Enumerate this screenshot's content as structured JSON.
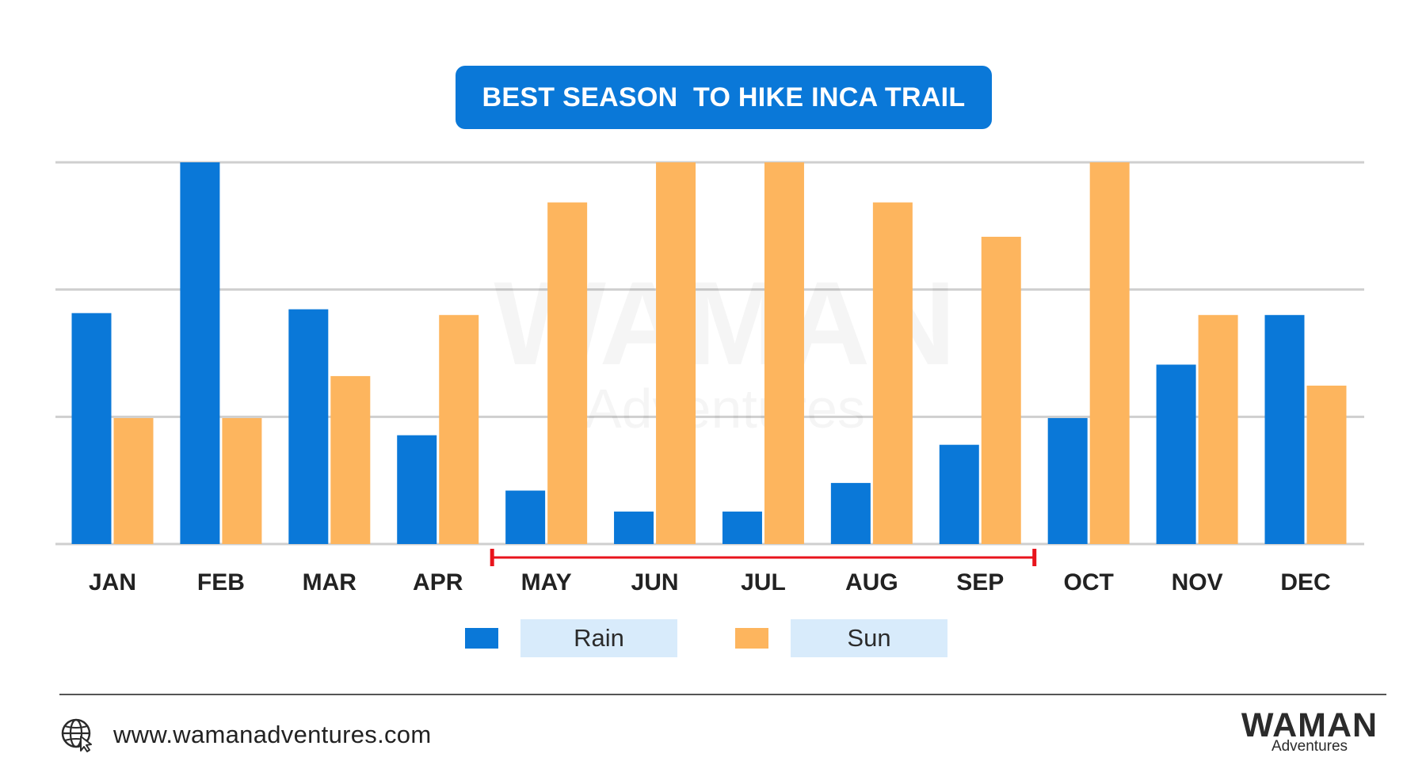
{
  "title": "BEST SEASON  TO HIKE INCA TRAIL",
  "watermark": {
    "main": "WAMAN",
    "sub": "Adventures"
  },
  "chart_data": {
    "type": "bar",
    "categories": [
      "JAN",
      "FEB",
      "MAR",
      "APR",
      "MAY",
      "JUN",
      "JUL",
      "AUG",
      "SEP",
      "OCT",
      "NOV",
      "DEC"
    ],
    "series": [
      {
        "name": "Rain",
        "color": "#0a78d8",
        "values": [
          60.5,
          100,
          61.5,
          28.5,
          14,
          8.5,
          8.5,
          16,
          26,
          33,
          47,
          60
        ]
      },
      {
        "name": "Sun",
        "color": "#fdb55e",
        "values": [
          33,
          33,
          44,
          60,
          89.5,
          100,
          100,
          89.5,
          80.5,
          100,
          60,
          41.5
        ]
      }
    ],
    "ylim": [
      0,
      100
    ],
    "grid": true,
    "legend": "bottom-center",
    "highlight": {
      "from": "MAY",
      "to": "SEP",
      "color": "#e8141c"
    }
  },
  "legend": {
    "rain_label": "Rain",
    "sun_label": "Sun"
  },
  "footer": {
    "website": "www.wamanadventures.com",
    "icon": "globe-cursor-icon"
  },
  "brand": {
    "main": "WAMAN",
    "sub": "Adventures"
  }
}
